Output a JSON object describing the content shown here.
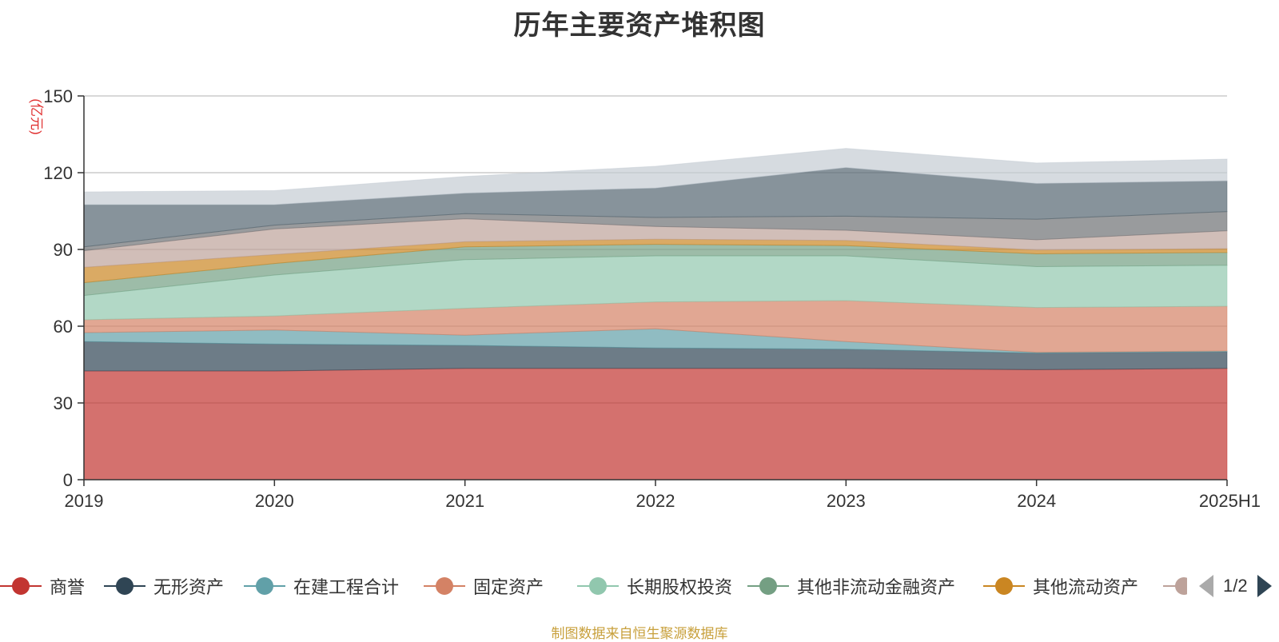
{
  "title": "历年主要资产堆积图",
  "footer": "制图数据来自恒生聚源数据库",
  "pager": {
    "text": "1/2"
  },
  "chart_data": {
    "type": "area",
    "stacked": true,
    "title": "历年主要资产堆积图",
    "ylabel": "(亿元)",
    "xlabel": "",
    "ylim": [
      0,
      150
    ],
    "yticks": [
      0,
      30,
      60,
      90,
      120,
      150
    ],
    "grid": true,
    "legend_position": "bottom",
    "categories": [
      "2019",
      "2020",
      "2021",
      "2022",
      "2023",
      "2024",
      "2025H1"
    ],
    "series": [
      {
        "name": "商誉",
        "color": "#c23531",
        "values": [
          42.5,
          42.5,
          43.5,
          43.5,
          43.5,
          43.0,
          43.5
        ]
      },
      {
        "name": "无形资产",
        "color": "#2f4554",
        "values": [
          11.5,
          10.5,
          9.0,
          8.0,
          7.5,
          6.5,
          6.5
        ]
      },
      {
        "name": "在建工程合计",
        "color": "#61a0a8",
        "values": [
          3.5,
          5.5,
          4.0,
          7.5,
          3.0,
          0.3,
          0.3
        ]
      },
      {
        "name": "固定资产",
        "color": "#d48265",
        "values": [
          5.0,
          5.5,
          10.5,
          10.5,
          16.0,
          17.5,
          17.5
        ]
      },
      {
        "name": "长期股权投资",
        "color": "#91c7ae",
        "values": [
          9.5,
          16.0,
          19.0,
          18.0,
          17.5,
          16.0,
          16.0
        ]
      },
      {
        "name": "其他非流动金融资产",
        "color": "#749f83",
        "values": [
          5.0,
          4.5,
          5.0,
          4.5,
          4.0,
          5.0,
          5.0
        ]
      },
      {
        "name": "其他流动资产",
        "color": "#ca8622",
        "values": [
          6.0,
          3.5,
          2.0,
          2.0,
          2.0,
          1.5,
          1.5
        ]
      },
      {
        "color": "#bda29a",
        "values": [
          6.5,
          10.0,
          9.0,
          5.0,
          4.0,
          4.0,
          7.0
        ]
      },
      {
        "color": "#6e7074",
        "values": [
          1.5,
          1.5,
          2.0,
          3.5,
          5.5,
          8.0,
          7.5
        ]
      },
      {
        "color": "#546570",
        "values": [
          16.5,
          8.0,
          8.0,
          11.5,
          19.0,
          14.0,
          12.0
        ]
      },
      {
        "color": "#c4ccd3",
        "values": [
          5.0,
          5.5,
          6.5,
          8.5,
          7.5,
          8.0,
          8.5
        ]
      }
    ]
  }
}
